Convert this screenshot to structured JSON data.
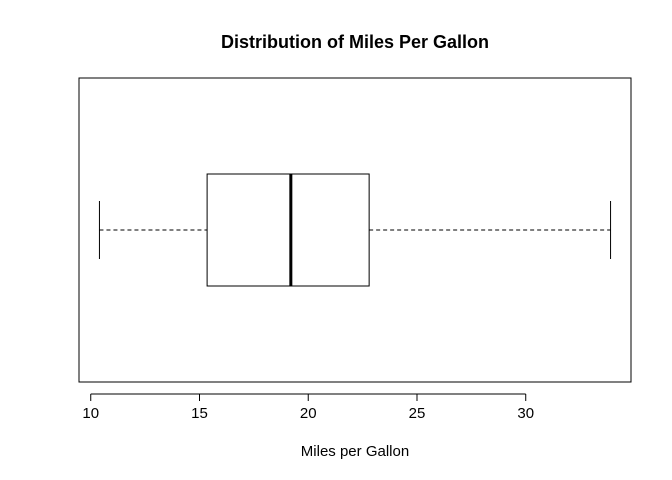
{
  "chart_data": {
    "type": "boxplot",
    "orientation": "horizontal",
    "title": "Distribution of Miles Per Gallon",
    "xlabel": "Miles per Gallon",
    "ylabel": "",
    "xlim": [
      9.46,
      34.84
    ],
    "ticks": [
      10,
      15,
      20,
      25,
      30
    ],
    "tick_labels": [
      "10",
      "15",
      "20",
      "25",
      "30"
    ],
    "box": {
      "whisker_low": 10.4,
      "q1": 15.35,
      "median": 19.2,
      "q3": 22.8,
      "whisker_high": 33.9
    },
    "colors": {
      "box_fill": "#ffffff",
      "stroke": "#000000"
    },
    "grid": false,
    "legend": "none"
  }
}
